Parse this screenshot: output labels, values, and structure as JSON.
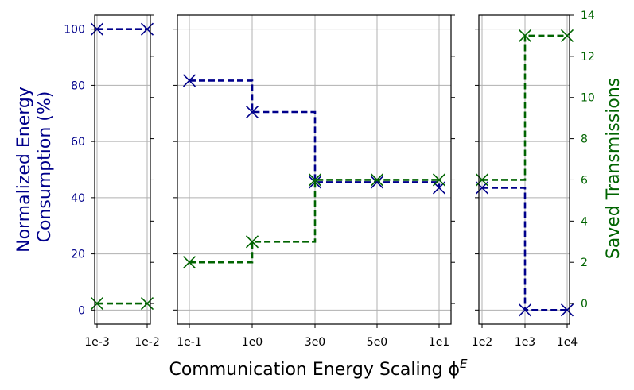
{
  "chart_data": {
    "type": "line",
    "xlabel": "Communication Energy Scaling ϕ",
    "xlabel_superscript": "E",
    "ylabel_left_line1": "Normalized Energy",
    "ylabel_left_line2": "Consumption (%)",
    "ylabel_right": "Saved Transmissions",
    "ylim_left": [
      -5,
      105
    ],
    "ylim_right": [
      -1,
      14
    ],
    "y_ticks_left": [
      "0",
      "20",
      "40",
      "60",
      "80",
      "100"
    ],
    "y_ticks_right": [
      "0",
      "2",
      "4",
      "6",
      "8",
      "10",
      "12",
      "14"
    ],
    "grid": true,
    "colors": {
      "energy": "#00008b",
      "saved": "#006400",
      "grid": "#b0b0b0",
      "axis": "#000000"
    },
    "x_categories": [
      "1e-3",
      "1e-2",
      "1e-1",
      "1e0",
      "3e0",
      "5e0",
      "1e1",
      "1e2",
      "1e3",
      "1e4"
    ],
    "panels": [
      {
        "categories": [
          "1e-3",
          "1e-2"
        ],
        "energy": [
          100,
          100
        ],
        "saved": [
          0,
          0
        ]
      },
      {
        "categories": [
          "1e-1",
          "1e0",
          "3e0",
          "5e0",
          "1e1"
        ],
        "energy": [
          81.7,
          70.5,
          45.5,
          45.5,
          43.5
        ],
        "saved": [
          2,
          3,
          6,
          6,
          6
        ]
      },
      {
        "categories": [
          "1e2",
          "1e3",
          "1e4"
        ],
        "energy": [
          43.5,
          0,
          0
        ],
        "saved": [
          6,
          13,
          13
        ]
      }
    ]
  }
}
